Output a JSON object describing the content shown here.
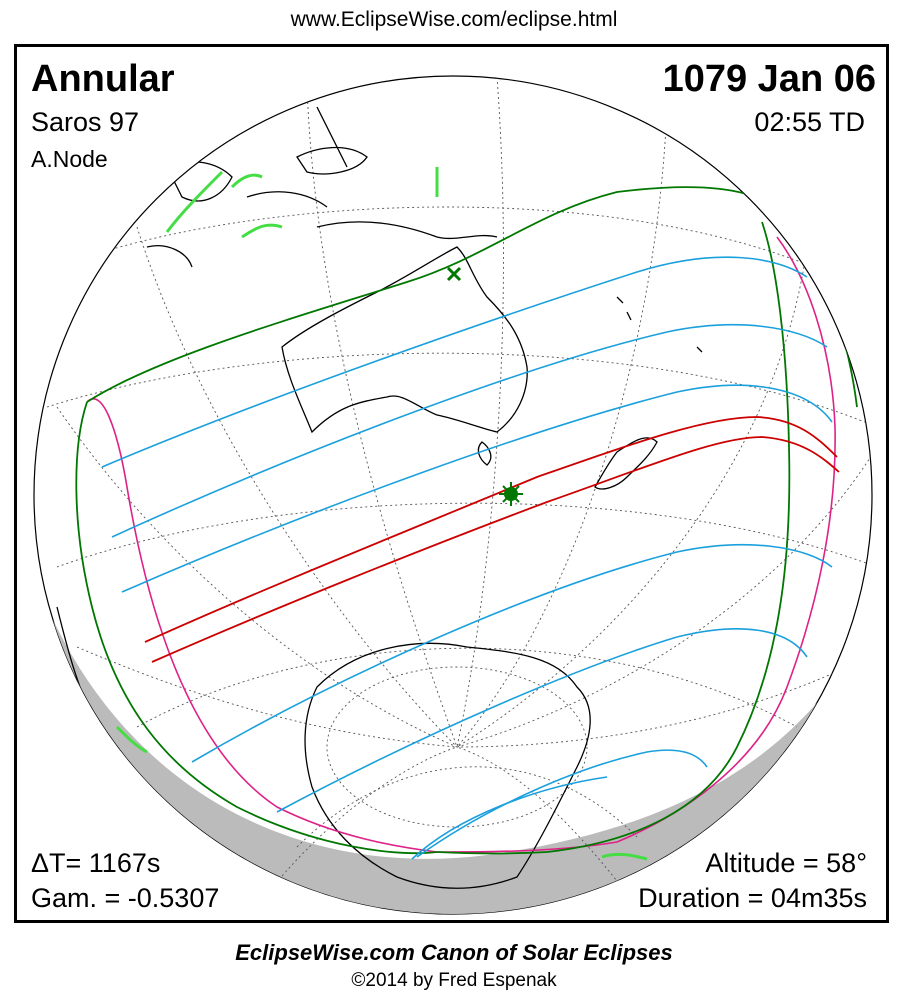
{
  "url": "www.EclipseWise.com/eclipse.html",
  "eclipse": {
    "type": "Annular",
    "saros": "Saros  97",
    "node": "A.Node",
    "date": "1079 Jan 06",
    "time": "02:55 TD"
  },
  "stats": {
    "delta_t": "ΔT=   1167s",
    "gamma": "Gam. = -0.5307",
    "altitude": "Altitude = 58°",
    "duration": "Duration = 04m35s"
  },
  "footer": {
    "canon": "EclipseWise.com Canon of Solar Eclipses",
    "copyright": "©2014 by Fred Espenak"
  },
  "colors": {
    "central_path": "#cc0000",
    "magnitude_lines": "#1aa0dd",
    "penumbral_limits": "#007700",
    "rise_set_curves": "#dd2288",
    "coastlines": "#000000",
    "night_side": "#bbbbbb",
    "visible_land": "#44dd44"
  },
  "markers": {
    "greatest_eclipse": "star-marker",
    "sub_solar_point": "x-marker"
  }
}
